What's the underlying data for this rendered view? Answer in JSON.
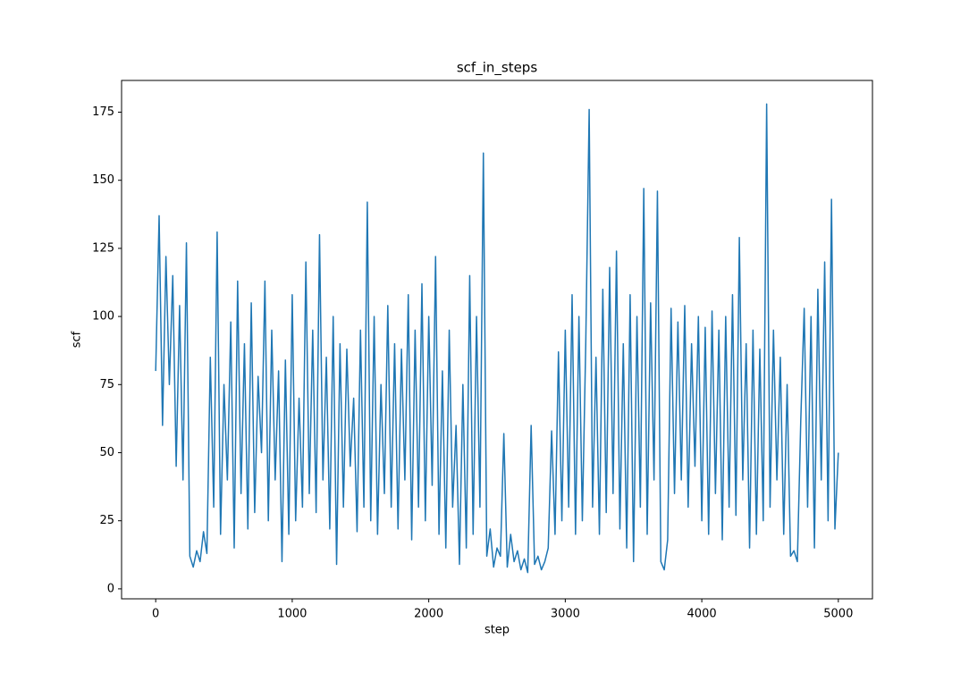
{
  "chart_data": {
    "type": "line",
    "title": "scf_in_steps",
    "x_label": "step",
    "y_label": "scf",
    "xlim": [
      -250,
      5250
    ],
    "ylim": [
      -3.65,
      186.65
    ],
    "xticks": [
      0,
      1000,
      2000,
      3000,
      4000,
      5000
    ],
    "yticks": [
      0,
      25,
      50,
      75,
      100,
      125,
      150,
      175
    ],
    "series": [
      {
        "color": "#1f77b4",
        "x": [
          0,
          25,
          50,
          75,
          100,
          125,
          150,
          175,
          200,
          225,
          250,
          275,
          300,
          325,
          350,
          375,
          400,
          425,
          450,
          475,
          500,
          525,
          550,
          575,
          600,
          625,
          650,
          675,
          700,
          725,
          750,
          775,
          800,
          825,
          850,
          875,
          900,
          925,
          950,
          975,
          1000,
          1025,
          1050,
          1075,
          1100,
          1125,
          1150,
          1175,
          1200,
          1225,
          1250,
          1275,
          1300,
          1325,
          1350,
          1375,
          1400,
          1425,
          1450,
          1475,
          1500,
          1525,
          1550,
          1575,
          1600,
          1625,
          1650,
          1675,
          1700,
          1725,
          1750,
          1775,
          1800,
          1825,
          1850,
          1875,
          1900,
          1925,
          1950,
          1975,
          2000,
          2025,
          2050,
          2075,
          2100,
          2125,
          2150,
          2175,
          2200,
          2225,
          2250,
          2275,
          2300,
          2325,
          2350,
          2375,
          2400,
          2425,
          2450,
          2475,
          2500,
          2525,
          2550,
          2575,
          2600,
          2625,
          2650,
          2675,
          2700,
          2725,
          2750,
          2775,
          2800,
          2825,
          2850,
          2875,
          2900,
          2925,
          2950,
          2975,
          3000,
          3025,
          3050,
          3075,
          3100,
          3125,
          3150,
          3175,
          3200,
          3225,
          3250,
          3275,
          3300,
          3325,
          3350,
          3375,
          3400,
          3425,
          3450,
          3475,
          3500,
          3525,
          3550,
          3575,
          3600,
          3625,
          3650,
          3675,
          3700,
          3725,
          3750,
          3775,
          3800,
          3825,
          3850,
          3875,
          3900,
          3925,
          3950,
          3975,
          4000,
          4025,
          4050,
          4075,
          4100,
          4125,
          4150,
          4175,
          4200,
          4225,
          4250,
          4275,
          4300,
          4325,
          4350,
          4375,
          4400,
          4425,
          4450,
          4475,
          4500,
          4525,
          4550,
          4575,
          4600,
          4625,
          4650,
          4675,
          4700,
          4725,
          4750,
          4775,
          4800,
          4825,
          4850,
          4875,
          4900,
          4925,
          4950,
          4975,
          5000
        ],
        "values": [
          80,
          137,
          60,
          122,
          75,
          115,
          45,
          104,
          40,
          127,
          12,
          8,
          14,
          10,
          21,
          13,
          85,
          30,
          131,
          20,
          75,
          40,
          98,
          15,
          113,
          35,
          90,
          22,
          105,
          28,
          78,
          50,
          113,
          25,
          95,
          40,
          80,
          10,
          84,
          20,
          108,
          25,
          70,
          30,
          120,
          35,
          95,
          28,
          130,
          40,
          85,
          22,
          100,
          9,
          90,
          30,
          88,
          45,
          70,
          21,
          95,
          30,
          142,
          25,
          100,
          20,
          75,
          35,
          104,
          30,
          90,
          22,
          88,
          40,
          108,
          18,
          95,
          30,
          112,
          25,
          100,
          38,
          122,
          20,
          80,
          15,
          95,
          30,
          60,
          9,
          75,
          15,
          115,
          20,
          100,
          30,
          160,
          12,
          22,
          8,
          15,
          12,
          57,
          8,
          20,
          10,
          14,
          7,
          11,
          6,
          60,
          9,
          12,
          7,
          10,
          15,
          58,
          20,
          87,
          25,
          95,
          30,
          108,
          20,
          100,
          25,
          90,
          176,
          30,
          85,
          20,
          110,
          28,
          118,
          35,
          124,
          22,
          90,
          15,
          108,
          10,
          100,
          30,
          147,
          20,
          105,
          40,
          146,
          10,
          7,
          18,
          103,
          35,
          98,
          40,
          104,
          30,
          90,
          45,
          100,
          25,
          96,
          20,
          102,
          35,
          95,
          18,
          100,
          30,
          108,
          27,
          129,
          40,
          90,
          15,
          95,
          20,
          88,
          25,
          178,
          30,
          95,
          40,
          85,
          20,
          75,
          12,
          14,
          10,
          62,
          103,
          30,
          100,
          15,
          110,
          40,
          120,
          25,
          143,
          22,
          50
        ]
      }
    ]
  }
}
